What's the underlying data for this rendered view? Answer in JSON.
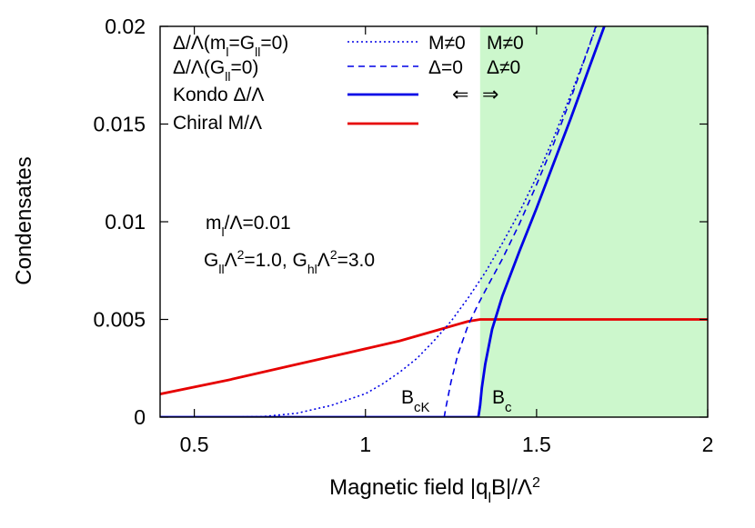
{
  "chart_data": {
    "type": "line",
    "xlabel": {
      "base": "Magnetic field |q",
      "sub1": "l",
      "mid": "B|/Λ",
      "sup": "2"
    },
    "ylabel": "Condensates",
    "xlim": [
      0.4,
      2.0
    ],
    "ylim": [
      0,
      0.02
    ],
    "xticks": [
      0.5,
      1.0,
      1.5,
      2.0
    ],
    "xtick_labels": [
      "0.5",
      "1",
      "1.5",
      "2"
    ],
    "yticks": [
      0,
      0.005,
      0.01,
      0.015,
      0.02
    ],
    "ytick_labels": [
      "0",
      "0.005",
      "0.01",
      "0.015",
      "0.02"
    ],
    "grid": false,
    "legend_position": "top-left",
    "shaded_region": {
      "x_start": 1.335,
      "x_end": 2.0,
      "color": "#ccf7cc"
    },
    "series": [
      {
        "key": "delta_ml_g_zero",
        "legend": {
          "a": "Δ/Λ(m",
          "a_sub": "l",
          "b": "=G",
          "b_sub": "ll",
          "c": "=0)"
        },
        "color": "#0000e6",
        "dash": "dotted",
        "width": 1.6,
        "x": [
          0.4,
          0.6,
          0.7,
          0.8,
          0.9,
          1.0,
          1.05,
          1.1,
          1.15,
          1.2,
          1.25,
          1.3,
          1.35,
          1.4,
          1.45,
          1.5,
          1.55,
          1.6,
          1.65,
          1.7
        ],
        "y": [
          0,
          0,
          3e-05,
          0.0002,
          0.0006,
          0.0012,
          0.0017,
          0.0023,
          0.003,
          0.0039,
          0.0049,
          0.0061,
          0.0074,
          0.0089,
          0.0105,
          0.0123,
          0.0143,
          0.0165,
          0.0188,
          0.0212
        ]
      },
      {
        "key": "delta_g_zero",
        "legend": {
          "a": "Δ/Λ(G",
          "a_sub": "ll",
          "b": "=0)"
        },
        "color": "#0000e6",
        "dash": "dashed",
        "width": 1.6,
        "x": [
          0.4,
          1.23,
          1.235,
          1.25,
          1.27,
          1.3,
          1.33,
          1.36,
          1.4,
          1.45,
          1.5,
          1.55,
          1.6,
          1.65,
          1.7
        ],
        "y": [
          0,
          0,
          0.0005,
          0.0018,
          0.0032,
          0.0047,
          0.0058,
          0.0068,
          0.0081,
          0.0099,
          0.0119,
          0.014,
          0.0163,
          0.0188,
          0.0214
        ]
      },
      {
        "key": "kondo",
        "legend": {
          "a": "Kondo Δ/Λ"
        },
        "color": "#0000e6",
        "dash": "solid",
        "width": 2.8,
        "x": [
          0.4,
          1.33,
          1.335,
          1.34,
          1.35,
          1.37,
          1.4,
          1.45,
          1.5,
          1.55,
          1.6,
          1.65,
          1.7
        ],
        "y": [
          0,
          0,
          0.0006,
          0.0015,
          0.0027,
          0.0045,
          0.0062,
          0.0085,
          0.0107,
          0.013,
          0.0153,
          0.0177,
          0.0201
        ]
      },
      {
        "key": "chiral",
        "legend": {
          "a": "Chiral M/Λ"
        },
        "color": "#e60000",
        "dash": "solid",
        "width": 2.8,
        "x": [
          0.4,
          0.6,
          0.8,
          1.0,
          1.1,
          1.2,
          1.3,
          1.335,
          1.4,
          1.6,
          1.8,
          2.0
        ],
        "y": [
          0.00118,
          0.0019,
          0.0027,
          0.0035,
          0.0039,
          0.0044,
          0.0049,
          0.005,
          0.005,
          0.005,
          0.005,
          0.005
        ]
      }
    ],
    "annotations": {
      "params_line1": {
        "a": "m",
        "a_sub": "l",
        "b": "/Λ=0.01"
      },
      "params_line2": {
        "a": "G",
        "a_sub": "ll",
        "b": "Λ",
        "b_sup": "2",
        "c": "=1.0, G",
        "c_sub": "hl",
        "d": "Λ",
        "d_sup": "2",
        "e": "=3.0"
      },
      "bck": {
        "a": "B",
        "a_sub": "cK"
      },
      "bc": {
        "a": "B",
        "a_sub": "c"
      },
      "left_region": {
        "row1": "M≠0",
        "row2": "Δ=0",
        "arrow": "⇐",
        "color": "#000000"
      },
      "right_region": {
        "row1": "M≠0",
        "row2": "Δ≠0",
        "arrow": "⇒",
        "color": "#1a8a1a"
      }
    }
  }
}
